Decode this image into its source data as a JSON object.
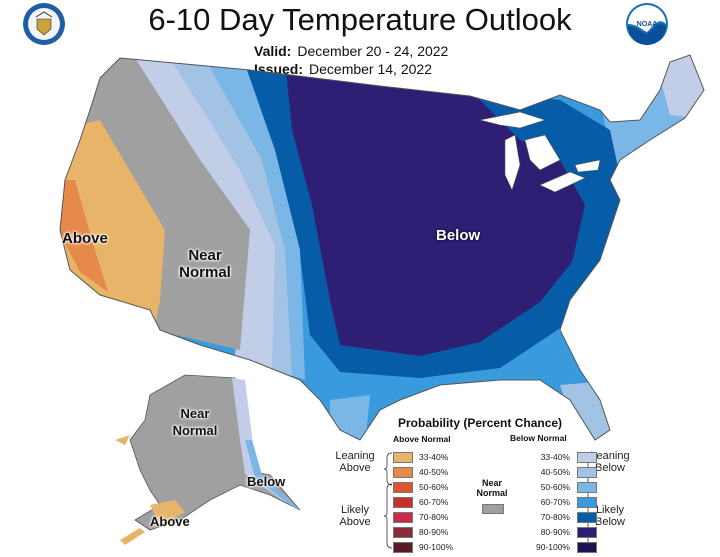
{
  "header": {
    "title": "6-10 Day Temperature Outlook",
    "valid_label": "Valid:",
    "valid_value": "December 20 - 24, 2022",
    "issued_label": "Issued:",
    "issued_value": "December 14, 2022",
    "left_logo": "department-of-commerce-seal",
    "right_logo": "NOAA"
  },
  "map_labels": {
    "conus_above": "Above",
    "conus_near_1": "Near",
    "conus_near_2": "Normal",
    "conus_below": "Below",
    "ak_near_1": "Near",
    "ak_near_2": "Normal",
    "ak_below": "Below",
    "ak_above": "Above"
  },
  "legend": {
    "title": "Probability (Percent Chance)",
    "above_header": "Above Normal",
    "below_header": "Below Normal",
    "leaning_above_1": "Leaning",
    "leaning_above_2": "Above",
    "likely_above_1": "Likely",
    "likely_above_2": "Above",
    "leaning_below_1": "Leaning",
    "leaning_below_2": "Below",
    "likely_below_1": "Likely",
    "likely_below_2": "Below",
    "near_normal_1": "Near",
    "near_normal_2": "Normal",
    "near_normal_color": "#a0a0a0",
    "above": [
      {
        "range": "33-40%",
        "color": "#e8b46a"
      },
      {
        "range": "40-50%",
        "color": "#e58a4a"
      },
      {
        "range": "50-60%",
        "color": "#dd5533"
      },
      {
        "range": "60-70%",
        "color": "#c8302a"
      },
      {
        "range": "70-80%",
        "color": "#c92a45"
      },
      {
        "range": "80-90%",
        "color": "#8c2a3a"
      },
      {
        "range": "90-100%",
        "color": "#5a1a25"
      }
    ],
    "below": [
      {
        "range": "33-40%",
        "color": "#c2cde8"
      },
      {
        "range": "40-50%",
        "color": "#a2c3e4"
      },
      {
        "range": "50-60%",
        "color": "#7ab6e6"
      },
      {
        "range": "60-70%",
        "color": "#3a9ade"
      },
      {
        "range": "70-80%",
        "color": "#075ca8"
      },
      {
        "range": "80-90%",
        "color": "#2e1f75"
      },
      {
        "range": "90-100%",
        "color": "#1b1550"
      }
    ]
  }
}
